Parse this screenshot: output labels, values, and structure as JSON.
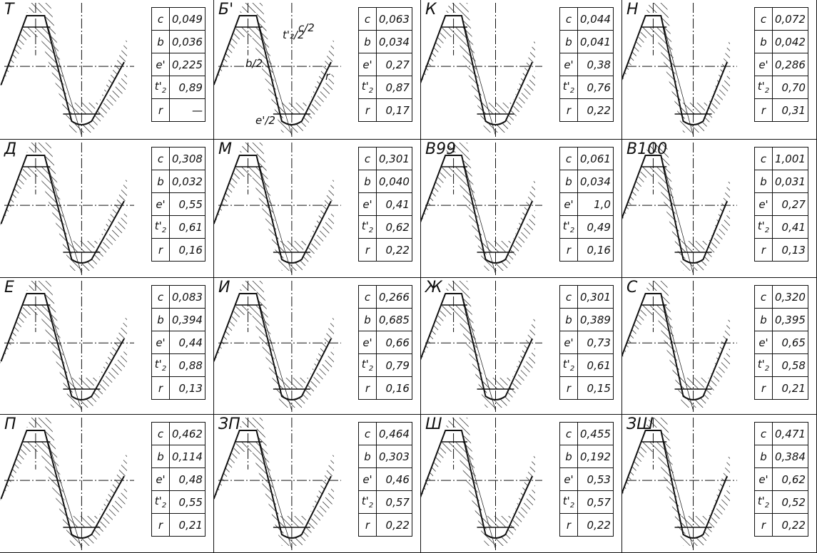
{
  "profiles": [
    {
      "label": "Т",
      "params": [
        {
          "sym": "c",
          "val": "0,049"
        },
        {
          "sym": "b",
          "val": "0,036"
        },
        {
          "sym": "e'",
          "val": "0,225"
        },
        {
          "sym": "t'",
          "sub": "2",
          "val": "0,89"
        },
        {
          "sym": "r",
          "val": "—"
        }
      ]
    },
    {
      "label": "Б'",
      "params": [
        {
          "sym": "c",
          "val": "0,063"
        },
        {
          "sym": "b",
          "val": "0,034"
        },
        {
          "sym": "e'",
          "val": "0,27"
        },
        {
          "sym": "t'",
          "sub": "2",
          "val": "0,87"
        },
        {
          "sym": "r",
          "val": "0,17"
        }
      ]
    },
    {
      "label": "К",
      "params": [
        {
          "sym": "c",
          "val": "0,044"
        },
        {
          "sym": "b",
          "val": "0,041"
        },
        {
          "sym": "e'",
          "val": "0,38"
        },
        {
          "sym": "t'",
          "sub": "2",
          "val": "0,76"
        },
        {
          "sym": "r",
          "val": "0,22"
        }
      ]
    },
    {
      "label": "Н",
      "params": [
        {
          "sym": "c",
          "val": "0,072"
        },
        {
          "sym": "b",
          "val": "0,042"
        },
        {
          "sym": "e'",
          "val": "0,286"
        },
        {
          "sym": "t'",
          "sub": "2",
          "val": "0,70"
        },
        {
          "sym": "r",
          "val": "0,31"
        }
      ]
    },
    {
      "label": "Д",
      "params": [
        {
          "sym": "c",
          "val": "0,308"
        },
        {
          "sym": "b",
          "val": "0,032"
        },
        {
          "sym": "e'",
          "val": "0,55"
        },
        {
          "sym": "t'",
          "sub": "2",
          "val": "0,61"
        },
        {
          "sym": "r",
          "val": "0,16"
        }
      ]
    },
    {
      "label": "М",
      "params": [
        {
          "sym": "c",
          "val": "0,301"
        },
        {
          "sym": "b",
          "val": "0,040"
        },
        {
          "sym": "e'",
          "val": "0,41"
        },
        {
          "sym": "t'",
          "sub": "2",
          "val": "0,62"
        },
        {
          "sym": "r",
          "val": "0,22"
        }
      ]
    },
    {
      "label": "В99",
      "params": [
        {
          "sym": "c",
          "val": "0,061"
        },
        {
          "sym": "b",
          "val": "0,034"
        },
        {
          "sym": "e'",
          "val": "1,0"
        },
        {
          "sym": "t'",
          "sub": "2",
          "val": "0,49"
        },
        {
          "sym": "r",
          "val": "0,16"
        }
      ]
    },
    {
      "label": "В100",
      "params": [
        {
          "sym": "c",
          "val": "1,001"
        },
        {
          "sym": "b",
          "val": "0,031"
        },
        {
          "sym": "e'",
          "val": "0,27"
        },
        {
          "sym": "t'",
          "sub": "2",
          "val": "0,41"
        },
        {
          "sym": "r",
          "val": "0,13"
        }
      ]
    },
    {
      "label": "Е",
      "params": [
        {
          "sym": "c",
          "val": "0,083"
        },
        {
          "sym": "b",
          "val": "0,394"
        },
        {
          "sym": "e'",
          "val": "0,44"
        },
        {
          "sym": "t'",
          "sub": "2",
          "val": "0,88"
        },
        {
          "sym": "r",
          "val": "0,13"
        }
      ]
    },
    {
      "label": "И",
      "params": [
        {
          "sym": "c",
          "val": "0,266"
        },
        {
          "sym": "b",
          "val": "0,685"
        },
        {
          "sym": "e'",
          "val": "0,66"
        },
        {
          "sym": "t'",
          "sub": "2",
          "val": "0,79"
        },
        {
          "sym": "r",
          "val": "0,16"
        }
      ]
    },
    {
      "label": "Ж",
      "params": [
        {
          "sym": "c",
          "val": "0,301"
        },
        {
          "sym": "b",
          "val": "0,389"
        },
        {
          "sym": "e'",
          "val": "0,73"
        },
        {
          "sym": "t'",
          "sub": "2",
          "val": "0,61"
        },
        {
          "sym": "r",
          "val": "0,15"
        }
      ]
    },
    {
      "label": "С",
      "params": [
        {
          "sym": "c",
          "val": "0,320"
        },
        {
          "sym": "b",
          "val": "0,395"
        },
        {
          "sym": "e'",
          "val": "0,65"
        },
        {
          "sym": "t'",
          "sub": "2",
          "val": "0,58"
        },
        {
          "sym": "r",
          "val": "0,21"
        }
      ]
    },
    {
      "label": "П",
      "params": [
        {
          "sym": "c",
          "val": "0,462"
        },
        {
          "sym": "b",
          "val": "0,114"
        },
        {
          "sym": "e'",
          "val": "0,48"
        },
        {
          "sym": "t'",
          "sub": "2",
          "val": "0,55"
        },
        {
          "sym": "r",
          "val": "0,21"
        }
      ]
    },
    {
      "label": "ЗП",
      "params": [
        {
          "sym": "c",
          "val": "0,464"
        },
        {
          "sym": "b",
          "val": "0,303"
        },
        {
          "sym": "e'",
          "val": "0,46"
        },
        {
          "sym": "t'",
          "sub": "2",
          "val": "0,57"
        },
        {
          "sym": "r",
          "val": "0,22"
        }
      ]
    },
    {
      "label": "Ш",
      "params": [
        {
          "sym": "c",
          "val": "0,455"
        },
        {
          "sym": "b",
          "val": "0,192"
        },
        {
          "sym": "e'",
          "val": "0,53"
        },
        {
          "sym": "t'",
          "sub": "2",
          "val": "0,57"
        },
        {
          "sym": "r",
          "val": "0,22"
        }
      ]
    },
    {
      "label": "ЗШ",
      "params": [
        {
          "sym": "c",
          "val": "0,471"
        },
        {
          "sym": "b",
          "val": "0,384"
        },
        {
          "sym": "e'",
          "val": "0,62"
        },
        {
          "sym": "t'",
          "sub": "2",
          "val": "0,52"
        },
        {
          "sym": "r",
          "val": "0,22"
        }
      ]
    }
  ],
  "dimension_labels": {
    "c_half": "c/2",
    "t_half": "t'₂/2",
    "b_half": "b/2",
    "e_half": "e'/2",
    "r": "r"
  },
  "colors": {
    "ink": "#111111",
    "paper": "#ffffff"
  }
}
